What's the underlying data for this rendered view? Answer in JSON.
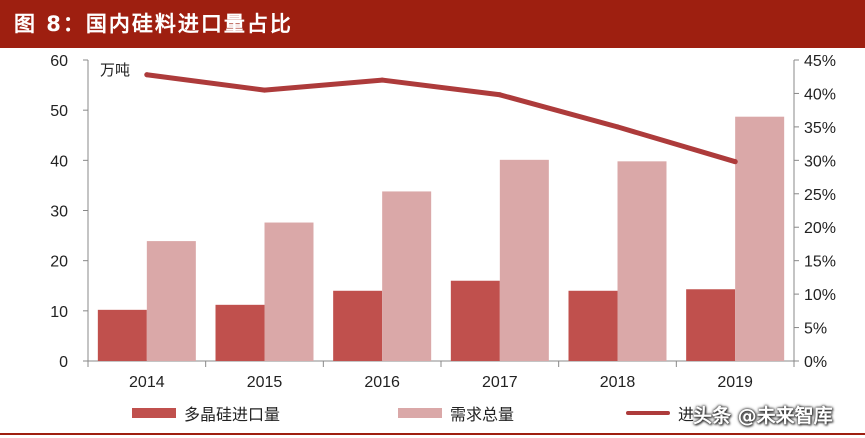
{
  "header": {
    "title": "图 8：国内硅料进口量占比"
  },
  "chart_data": {
    "type": "bar",
    "categories": [
      "2014",
      "2015",
      "2016",
      "2017",
      "2018",
      "2019"
    ],
    "left_axis": {
      "unit_label": "万吨",
      "ylim": [
        0,
        60
      ],
      "ticks": [
        "0",
        "10",
        "20",
        "30",
        "40",
        "50",
        "60"
      ]
    },
    "right_axis": {
      "ylim": [
        0,
        45
      ],
      "ticks": [
        "0%",
        "5%",
        "10%",
        "15%",
        "20%",
        "25%",
        "30%",
        "35%",
        "40%",
        "45%"
      ]
    },
    "series": [
      {
        "name": "多晶硅进口量",
        "type": "bar",
        "axis": "left",
        "color": "#c0504d",
        "values": [
          10.2,
          11.2,
          14.0,
          16.0,
          14.0,
          14.3
        ]
      },
      {
        "name": "需求总量",
        "type": "bar",
        "axis": "left",
        "color": "#daa8a8",
        "values": [
          23.9,
          27.6,
          33.8,
          40.1,
          39.8,
          48.7
        ]
      },
      {
        "name": "进",
        "type": "line",
        "axis": "right",
        "color": "#ad3b3b",
        "values": [
          42.8,
          40.5,
          42.0,
          39.8,
          35.0,
          29.8
        ]
      }
    ],
    "grid": false,
    "legend_position": "bottom"
  },
  "watermark": "头条 @未来智库"
}
